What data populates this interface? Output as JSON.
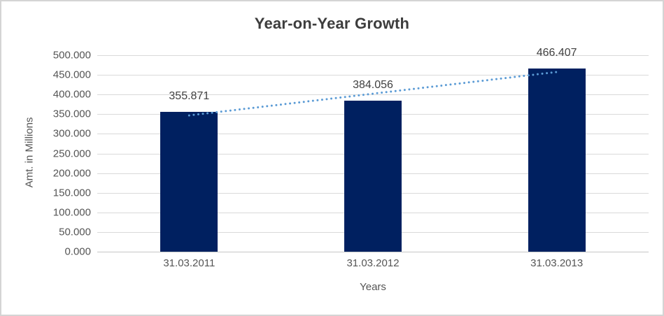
{
  "chart_data": {
    "type": "bar",
    "title": "Year-on-Year Growth",
    "xlabel": "Years",
    "ylabel": "Amt. in Millions",
    "categories": [
      "31.03.2011",
      "31.03.2012",
      "31.03.2013"
    ],
    "values": [
      355.871,
      384.056,
      466.407
    ],
    "value_labels": [
      "355.871",
      "384.056",
      "466.407"
    ],
    "ylim": [
      0,
      500
    ],
    "ytick_values": [
      0,
      50,
      100,
      150,
      200,
      250,
      300,
      350,
      400,
      450,
      500
    ],
    "ytick_labels": [
      "0.000",
      "50.000",
      "100.000",
      "150.000",
      "200.000",
      "250.000",
      "300.000",
      "350.000",
      "400.000",
      "450.000",
      "500.000"
    ],
    "grid": true,
    "legend": "none",
    "trendline": {
      "kind": "linear-dotted",
      "endpoint_values": [
        346.843,
        457.379
      ]
    },
    "colors": {
      "bar": "#002060",
      "trendline": "#5b9bd5",
      "gridline": "#d9d9d9",
      "axis_line": "#c6c6c6",
      "title_text": "#3d3d3d",
      "label_text": "#404040",
      "tick_text": "#555555"
    }
  }
}
